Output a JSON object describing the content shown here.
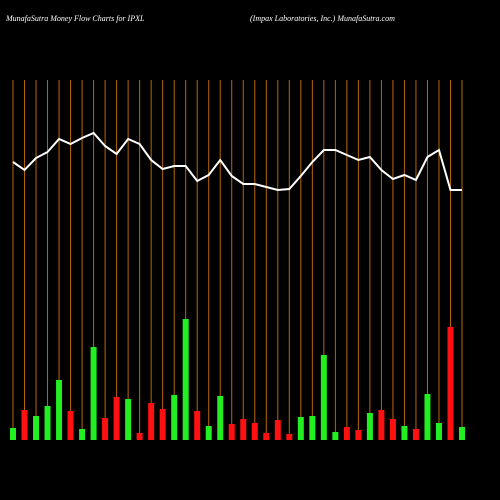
{
  "chart_data": {
    "type": "bar",
    "title": "MunafaSutra  Money Flow  Charts for IPXL",
    "subtitle": "(Impax Laboratories,  Inc.) MunafaSutra.com",
    "categories": [
      null,
      null,
      null,
      null,
      null,
      null,
      null,
      null,
      null,
      null,
      null,
      null,
      null,
      null,
      null,
      null,
      null,
      null,
      null,
      null,
      null,
      null,
      null,
      null,
      null,
      null,
      null,
      null,
      null,
      null,
      null,
      null,
      null,
      null,
      null,
      null,
      null,
      null,
      null,
      null
    ],
    "values": [
      12,
      30,
      24,
      34,
      60,
      29,
      11,
      93,
      22,
      43,
      41,
      7,
      37,
      31,
      45,
      121,
      29,
      14,
      44,
      16,
      21,
      17,
      7,
      20,
      6,
      23,
      24,
      85,
      8,
      13,
      10,
      27,
      30,
      21,
      14,
      11,
      46,
      17,
      113,
      13
    ],
    "colors": [
      "#22ee22",
      "#ff1111",
      "#22ee22",
      "#22ee22",
      "#22ee22",
      "#ff1111",
      "#22ee22",
      "#22ee22",
      "#ff1111",
      "#ff1111",
      "#22ee22",
      "#ff1111",
      "#ff1111",
      "#ff1111",
      "#22ee22",
      "#22ee22",
      "#ff1111",
      "#22ee22",
      "#22ee22",
      "#ff1111",
      "#ff1111",
      "#ff1111",
      "#ff1111",
      "#ff1111",
      "#ff1111",
      "#22ee22",
      "#22ee22",
      "#22ee22",
      "#22ee22",
      "#ff1111",
      "#ff1111",
      "#22ee22",
      "#ff1111",
      "#ff1111",
      "#22ee22",
      "#ff1111",
      "#22ee22",
      "#22ee22",
      "#ff1111",
      "#22ee22"
    ],
    "line": {
      "color": "#ffffff",
      "values": [
        278,
        270,
        282,
        288,
        301,
        296,
        302,
        307,
        294,
        286,
        301,
        296,
        280,
        271,
        274,
        274,
        259,
        265,
        280,
        264,
        256,
        256,
        253,
        250,
        251,
        264,
        278,
        290,
        290,
        285,
        280,
        283,
        270,
        261,
        265,
        260,
        283,
        290,
        250,
        250
      ]
    },
    "grid_color": "#b8660b",
    "ylim": [
      0,
      360
    ]
  }
}
